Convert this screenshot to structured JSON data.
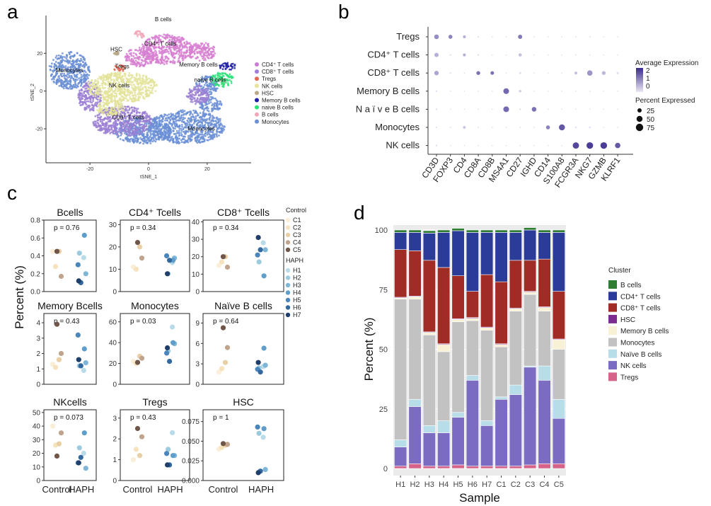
{
  "panel_labels": {
    "a": "a",
    "b": "b",
    "c": "c",
    "d": "d"
  },
  "chart_data": [
    {
      "id": "a",
      "type": "scatter",
      "xlabel": "tSNE_1",
      "ylabel": "tSNE_2",
      "xticks": [
        -20,
        0,
        20
      ],
      "yticks": [
        -20,
        0,
        20
      ],
      "xlim": [
        -35,
        35
      ],
      "ylim": [
        -38,
        40
      ],
      "cluster_labels": [
        {
          "text": "B cells",
          "x": 5,
          "y": 37
        },
        {
          "text": "CD4⁺ T cells",
          "x": 4,
          "y": 24
        },
        {
          "text": "HSC",
          "x": -11,
          "y": 21
        },
        {
          "text": "Tregs",
          "x": -9,
          "y": 12
        },
        {
          "text": "Memory B cells",
          "x": 17,
          "y": 13
        },
        {
          "text": "Monocytes",
          "x": -27,
          "y": 10
        },
        {
          "text": "NK cells",
          "x": -10,
          "y": 2
        },
        {
          "text": "naïve B cells",
          "x": 21,
          "y": 5
        },
        {
          "text": "CD8⁺ T cells",
          "x": -7,
          "y": -15
        },
        {
          "text": "Monocytes",
          "x": 18,
          "y": -21
        }
      ],
      "clusters": [
        {
          "name": "Monocytes",
          "color": "#6b8fd6",
          "blobs": [
            [
              -27,
              11,
              7,
              10
            ],
            [
              13,
              -19,
              13,
              9
            ],
            [
              -2,
              -21,
              10,
              7
            ],
            [
              20,
              3,
              4,
              5
            ],
            [
              21,
              -7,
              4,
              4
            ]
          ]
        },
        {
          "name": "CD8⁺ T cells",
          "color": "#9b7fd4",
          "blobs": [
            [
              -9,
              -16,
              10,
              8
            ],
            [
              -20,
              -3,
              4,
              8
            ],
            [
              17,
              -2,
              4,
              5
            ]
          ]
        },
        {
          "name": "NK cells",
          "color": "#e3e39a",
          "blobs": [
            [
              -9,
              2,
              12,
              8
            ],
            [
              -13,
              -9,
              5,
              4
            ]
          ]
        },
        {
          "name": "CD4⁺ T cells",
          "color": "#d77fd1",
          "blobs": [
            [
              6,
              22,
              9,
              8
            ],
            [
              -3,
              18,
              5,
              5
            ],
            [
              18,
              21,
              5,
              5
            ]
          ]
        },
        {
          "name": "Tregs",
          "color": "#e36a55",
          "blobs": [
            [
              -10,
              12,
              2,
              2
            ]
          ]
        },
        {
          "name": "naïve B cells",
          "color": "#2fe27a",
          "blobs": [
            [
              25,
              6,
              4,
              4
            ]
          ]
        },
        {
          "name": "Memory B cells",
          "color": "#1d1fa6",
          "blobs": [
            [
              27,
              13,
              3,
              2
            ]
          ]
        },
        {
          "name": "B cells",
          "color": "#f0a8b8",
          "blobs": [
            [
              -3,
              30,
              2,
              2
            ]
          ]
        },
        {
          "name": "HSC",
          "color": "#b9a88a",
          "blobs": [
            [
              -11,
              20,
              1,
              1
            ]
          ]
        }
      ],
      "legend": [
        "CD4⁺ T cells",
        "CD8⁺ T cells",
        "Tregs",
        "NK cells",
        "HSC",
        "Memory B cells",
        "naive B cells",
        "B cells",
        "Monocytes"
      ],
      "legend_colors": [
        "#c77dd4",
        "#a27fd7",
        "#e36a55",
        "#e8e39a",
        "#b9a88a",
        "#1d1fa6",
        "#2fe27a",
        "#f0a8b8",
        "#6b8fd6"
      ]
    },
    {
      "id": "b",
      "type": "dotplot",
      "genes": [
        "CD3D",
        "FOXP3",
        "CD4",
        "CD8A",
        "CD8B",
        "MS4A1",
        "CD27",
        "IGHD",
        "CD14",
        "S100A8",
        "FCGR3A",
        "NKG7",
        "GZMB",
        "KLRF1"
      ],
      "cell_types": [
        "Tregs",
        "CD4⁺ T cells",
        "CD8⁺ T cells",
        "Memory B cells",
        "N a ï v e B cells",
        "Monocytes",
        "NK cells"
      ],
      "dots": [
        [
          [
            0.9,
            30
          ],
          [
            1.0,
            22
          ],
          [
            0.5,
            12
          ],
          [
            0,
            3
          ],
          [
            0,
            2
          ],
          [
            0,
            2
          ],
          [
            1.1,
            25
          ],
          [
            0,
            2
          ],
          [
            0,
            2
          ],
          [
            0,
            2
          ],
          [
            0,
            2
          ],
          [
            0,
            2
          ],
          [
            0,
            2
          ],
          [
            0,
            2
          ]
        ],
        [
          [
            0.5,
            25
          ],
          [
            0,
            3
          ],
          [
            0.5,
            12
          ],
          [
            0,
            3
          ],
          [
            0,
            2
          ],
          [
            0,
            2
          ],
          [
            0.3,
            15
          ],
          [
            0,
            2
          ],
          [
            0,
            2
          ],
          [
            0,
            2
          ],
          [
            0,
            2
          ],
          [
            0,
            2
          ],
          [
            0,
            2
          ],
          [
            0,
            2
          ]
        ],
        [
          [
            0.6,
            28
          ],
          [
            0,
            3
          ],
          [
            0,
            2
          ],
          [
            1.2,
            20
          ],
          [
            1.2,
            18
          ],
          [
            0,
            2
          ],
          [
            0,
            5
          ],
          [
            0,
            2
          ],
          [
            0,
            2
          ],
          [
            0,
            2
          ],
          [
            0.3,
            12
          ],
          [
            0.8,
            40
          ],
          [
            0.4,
            20
          ],
          [
            0,
            6
          ]
        ],
        [
          [
            0,
            4
          ],
          [
            0,
            2
          ],
          [
            0,
            2
          ],
          [
            0,
            2
          ],
          [
            0,
            2
          ],
          [
            1.3,
            45
          ],
          [
            0.2,
            8
          ],
          [
            0,
            2
          ],
          [
            0,
            2
          ],
          [
            0,
            2
          ],
          [
            0,
            2
          ],
          [
            0,
            2
          ],
          [
            0,
            2
          ],
          [
            0,
            2
          ]
        ],
        [
          [
            0,
            4
          ],
          [
            0,
            2
          ],
          [
            0,
            2
          ],
          [
            0,
            2
          ],
          [
            0,
            2
          ],
          [
            1.3,
            45
          ],
          [
            0,
            4
          ],
          [
            1.2,
            30
          ],
          [
            0,
            2
          ],
          [
            0,
            2
          ],
          [
            0,
            2
          ],
          [
            0,
            2
          ],
          [
            0,
            2
          ],
          [
            0,
            2
          ]
        ],
        [
          [
            0,
            3
          ],
          [
            0,
            2
          ],
          [
            0.3,
            10
          ],
          [
            0,
            2
          ],
          [
            0,
            2
          ],
          [
            0,
            2
          ],
          [
            0,
            2
          ],
          [
            0,
            2
          ],
          [
            1.0,
            22
          ],
          [
            1.5,
            50
          ],
          [
            0,
            4
          ],
          [
            0,
            4
          ],
          [
            0,
            2
          ],
          [
            0,
            2
          ]
        ],
        [
          [
            0,
            4
          ],
          [
            0,
            2
          ],
          [
            0,
            2
          ],
          [
            0,
            2
          ],
          [
            0,
            2
          ],
          [
            0,
            2
          ],
          [
            0,
            2
          ],
          [
            0,
            2
          ],
          [
            0,
            2
          ],
          [
            0,
            2
          ],
          [
            1.7,
            55
          ],
          [
            1.8,
            60
          ],
          [
            1.8,
            60
          ],
          [
            1.5,
            40
          ]
        ]
      ],
      "legend_color_title": "Average Expression",
      "color_ticks": [
        "2",
        "1",
        "0"
      ],
      "legend_size_title": "Percent Expressed",
      "size_ticks": [
        "25",
        "50",
        "75"
      ]
    },
    {
      "id": "c",
      "type": "scatter",
      "ylabel": "Percent (%)",
      "groups": [
        "Control",
        "HAPH"
      ],
      "legend_control_title": "Control",
      "legend_control": [
        "C1",
        "C2",
        "C3",
        "C4",
        "C5"
      ],
      "legend_haph_title": "HAPH",
      "legend_haph": [
        "H1",
        "H2",
        "H3",
        "H4",
        "H5",
        "H6",
        "H7"
      ],
      "control_colors": [
        "#faeed8",
        "#f6e3bd",
        "#e9cfa6",
        "#c0a48d",
        "#6f5649"
      ],
      "haph_colors": [
        "#b9dbe9",
        "#9ccbe0",
        "#7fb6d6",
        "#5f9ecb",
        "#4a86bb",
        "#34699f",
        "#1f3f6a"
      ],
      "subplots": [
        {
          "title": "Bcells",
          "p": "p = 0.76",
          "ylim": [
            0,
            0.8
          ],
          "yticks": [
            "0.0",
            "0.2",
            "0.4",
            "0.6",
            "0.8"
          ],
          "control": [
            0.45,
            0.28,
            0.45,
            0.17,
            0.45
          ],
          "haph": [
            0.38,
            0.43,
            0.2,
            0.63,
            0.3,
            0.1,
            0.12
          ]
        },
        {
          "title": "CD4⁺ Tcells",
          "p": "p = 0.34",
          "ylim": [
            0,
            32
          ],
          "yticks": [
            "0",
            "10",
            "20",
            "30"
          ],
          "control": [
            11,
            10,
            20,
            15,
            22
          ],
          "haph": [
            13,
            8,
            15,
            14,
            16,
            14,
            8
          ]
        },
        {
          "title": "CD8⁺ Tcells",
          "p": "p = 0.34",
          "ylim": [
            0,
            41
          ],
          "yticks": [
            "0",
            "10",
            "20",
            "30",
            "40"
          ],
          "control": [
            15,
            17,
            20,
            14,
            20
          ],
          "haph": [
            28,
            17,
            24,
            9,
            21,
            24,
            31
          ]
        },
        {
          "title": "Memory Bcells",
          "p": "p = 0.43",
          "ylim": [
            0,
            4.6
          ],
          "yticks": [
            "0",
            "1",
            "2",
            "3",
            "4"
          ],
          "control": [
            1.3,
            1.1,
            1.6,
            2.0,
            3.9
          ],
          "haph": [
            0.9,
            1.2,
            1.4,
            2.3,
            3.2,
            1.2,
            1.6
          ]
        },
        {
          "title": "Monocytes",
          "p": "p = 0.03",
          "ylim": [
            0,
            68
          ],
          "yticks": [
            "0",
            "20",
            "40",
            "60"
          ],
          "control": [
            22,
            20,
            27,
            25,
            21
          ],
          "haph": [
            55,
            32,
            39,
            40,
            30,
            22,
            35
          ]
        },
        {
          "title": "Naïve B cells",
          "p": "p = 0.64",
          "ylim": [
            0,
            10.4
          ],
          "yticks": [
            "0",
            "3",
            "6",
            "9"
          ],
          "control": [
            1.8,
            2.3,
            3.2,
            5.4,
            8.3
          ],
          "haph": [
            2.6,
            2.4,
            2.8,
            5.3,
            2.2,
            1.8,
            3.2
          ]
        },
        {
          "title": "NKcells",
          "p": "p = 0.073",
          "ylim": [
            0,
            52
          ],
          "yticks": [
            "0",
            "10",
            "20",
            "30",
            "40",
            "50"
          ],
          "control": [
            40,
            26,
            27,
            35,
            18
          ],
          "haph": [
            20,
            24,
            9,
            35,
            13,
            17,
            13
          ]
        },
        {
          "title": "Tregs",
          "p": "p = 0.43",
          "ylim": [
            0,
            3.4
          ],
          "yticks": [
            "0",
            "1",
            "2",
            "3"
          ],
          "control": [
            1.0,
            1.5,
            1.2,
            2.1,
            2.5
          ],
          "haph": [
            2.3,
            1.5,
            1.2,
            1.2,
            1.3,
            0.75,
            0.75
          ]
        },
        {
          "title": "HSC",
          "p": "p = 1",
          "ylim": [
            0,
            0.09
          ],
          "yticks": [
            "0.000",
            "0.025",
            "0.050",
            "0.075"
          ],
          "control": [
            0.04,
            0.042,
            0.045,
            0.046,
            0.047
          ],
          "haph": [
            0.055,
            0.06,
            0.014,
            0.066,
            0.068,
            0.012,
            0.01
          ]
        }
      ]
    },
    {
      "id": "d",
      "type": "bar",
      "stacked": true,
      "xlabel": "Sample",
      "ylabel": "Percent (%)",
      "ylim": [
        0,
        100
      ],
      "yticks": [
        0,
        25,
        50,
        75,
        100
      ],
      "categories": [
        "H1",
        "H2",
        "H3",
        "H4",
        "H5",
        "H6",
        "H7",
        "C1",
        "C2",
        "C3",
        "C4",
        "C5"
      ],
      "legend_title": "Cluster",
      "series": [
        {
          "name": "Tregs",
          "color": "#d6648a",
          "values": [
            1,
            2,
            1,
            1,
            1.5,
            1,
            1,
            1,
            1,
            1.5,
            2,
            2
          ]
        },
        {
          "name": "NK cells",
          "color": "#7b6cc2",
          "values": [
            8,
            24,
            14,
            14,
            20,
            36,
            17,
            28,
            30,
            41,
            35,
            19
          ]
        },
        {
          "name": "Naïve B cells",
          "color": "#b7dde8",
          "values": [
            3,
            3,
            3,
            5,
            2,
            2,
            2,
            1,
            4,
            0.5,
            6,
            8
          ]
        },
        {
          "name": "Monocytes",
          "color": "#c2c2c2",
          "values": [
            59,
            42,
            38,
            29,
            38,
            23,
            38,
            21,
            31,
            30,
            23,
            21
          ]
        },
        {
          "name": "Memory B cells",
          "color": "#f8f1d6",
          "values": [
            0.5,
            1,
            1,
            3,
            1,
            1,
            1,
            1,
            1,
            1,
            1.5,
            4
          ]
        },
        {
          "name": "HSC",
          "color": "#7b2c8e",
          "values": [
            0.3,
            0.3,
            0.3,
            0.3,
            0.3,
            0.3,
            0.3,
            0.3,
            0.3,
            0.3,
            0.3,
            0.3
          ]
        },
        {
          "name": "CD8⁺ T cells",
          "color": "#a12b25",
          "values": [
            20,
            19,
            30,
            32,
            18,
            11,
            22,
            26,
            20,
            13,
            20,
            20
          ]
        },
        {
          "name": "CD4⁺ T cells",
          "color": "#2b3b98",
          "values": [
            7.2,
            7.7,
            11.4,
            14.7,
            18.9,
            24.7,
            17.7,
            20.7,
            11.7,
            12.7,
            11.2,
            24.7
          ]
        },
        {
          "name": "B cells",
          "color": "#2e7d32",
          "values": [
            1,
            1,
            1,
            1,
            1,
            1,
            1,
            1,
            1,
            1,
            1,
            1
          ]
        }
      ],
      "legend": [
        "B cells",
        "CD4⁺ T cells",
        "CD8⁺ T cells",
        "HSC",
        "Memory B cells",
        "Monocytes",
        "Naïve B cells",
        "NK cells",
        "Tregs"
      ]
    }
  ]
}
